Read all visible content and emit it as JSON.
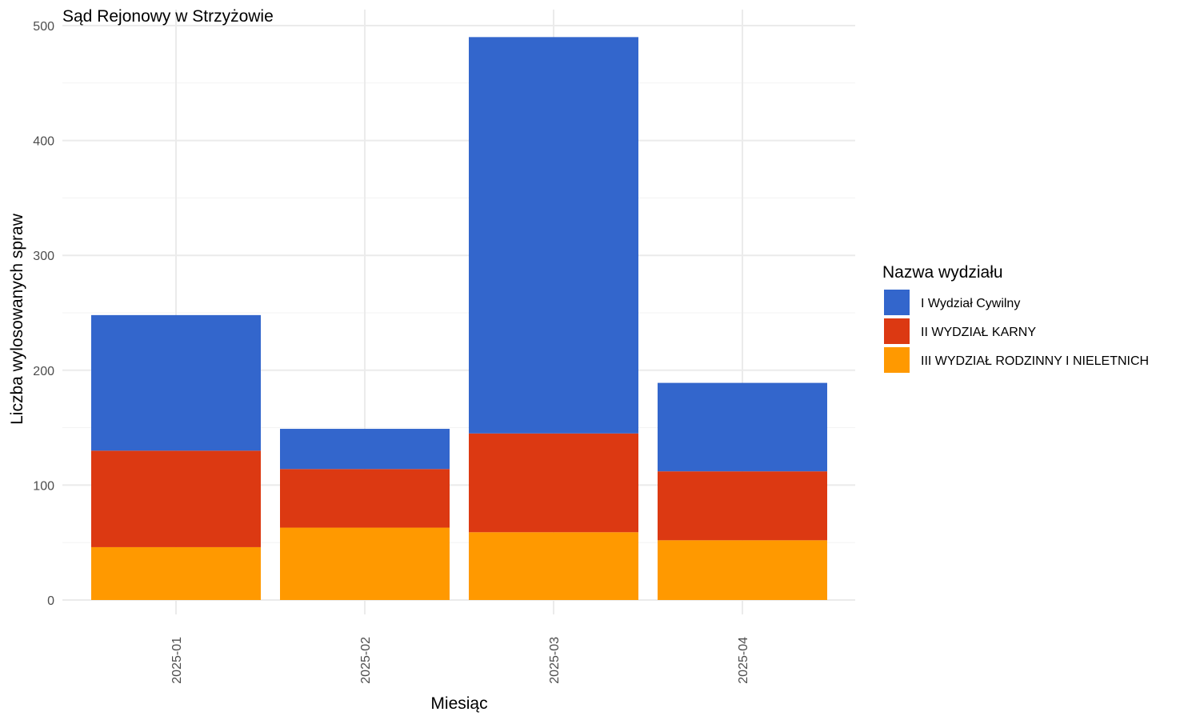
{
  "chart_data": {
    "type": "bar",
    "stacked": true,
    "title": "Sąd Rejonowy w Strzyżowie",
    "xlabel": "Miesiąc",
    "ylabel": "Liczba wylosowanych spraw",
    "ylim": [
      0,
      500
    ],
    "y_ticks": [
      "0",
      "100",
      "200",
      "300",
      "400",
      "500"
    ],
    "categories": [
      "2025-01",
      "2025-02",
      "2025-03",
      "2025-04"
    ],
    "legend": {
      "title": "Nazwa wydziału",
      "position": "right"
    },
    "grid": true,
    "series": [
      {
        "name": "III WYDZIAŁ RODZINNY I NIELETNICH",
        "color": "#FF9900",
        "values": [
          46,
          63,
          59,
          52
        ]
      },
      {
        "name": "II WYDZIAŁ KARNY",
        "color": "#DC3912",
        "values": [
          84,
          51,
          86,
          60
        ]
      },
      {
        "name": "I Wydział Cywilny",
        "color": "#3366CC",
        "values": [
          118,
          35,
          345,
          77
        ]
      }
    ],
    "legend_order": [
      "I Wydział Cywilny",
      "II WYDZIAŁ KARNY",
      "III WYDZIAŁ RODZINNY I NIELETNICH"
    ]
  }
}
